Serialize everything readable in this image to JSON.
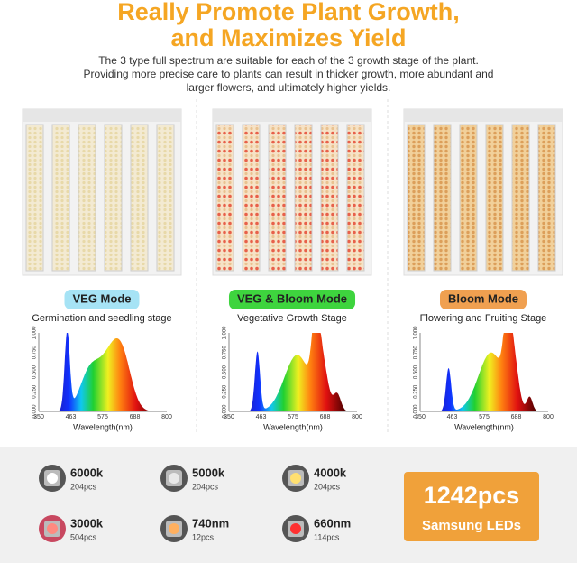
{
  "header": {
    "title_lines": [
      "Really Promote Plant Growth,",
      "and Maximizes Yield"
    ],
    "description_lines": [
      "The 3 type full spectrum are suitable for each of the 3 growth stage of the plant.",
      "Providing more precise care to plants can result in thicker growth, more abundant and",
      "larger flowers, and ultimately higher yields."
    ]
  },
  "modes": [
    {
      "label": "VEG Mode",
      "stage": "Germination and seedling stage"
    },
    {
      "label": "VEG & Bloom Mode",
      "stage": "Vegetative Growth Stage"
    },
    {
      "label": "Bloom Mode",
      "stage": "Flowering and Fruiting Stage"
    }
  ],
  "spectrum_axis": {
    "xticks": [
      "350",
      "463",
      "575",
      "688",
      "800"
    ],
    "yticks": [
      "0.000",
      "0.250",
      "0.500",
      "0.750",
      "1.000"
    ],
    "xlabel": "Wavelength(nm)"
  },
  "leds": [
    {
      "name": "6000k",
      "count": "204pcs"
    },
    {
      "name": "5000k",
      "count": "204pcs"
    },
    {
      "name": "4000k",
      "count": "204pcs"
    },
    {
      "name": "3000k",
      "count": "504pcs"
    },
    {
      "name": "740nm",
      "count": "12pcs"
    },
    {
      "name": "660nm",
      "count": "114pcs"
    }
  ],
  "total": {
    "count": "1242pcs",
    "label": "Samsung LEDs"
  }
}
